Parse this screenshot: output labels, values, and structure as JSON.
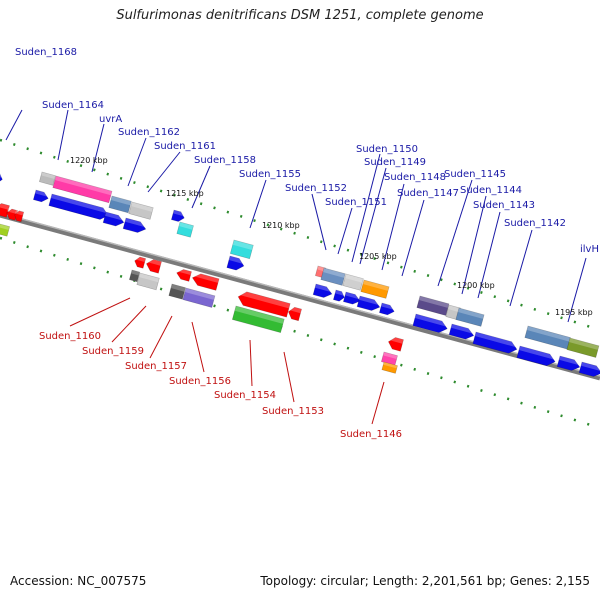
{
  "title": "Sulfurimonas denitrificans DSM 1251, complete genome",
  "accession": "Accession: NC_007575",
  "topology": "Topology: circular; Length: 2,201,561 bp; Genes: 2,155",
  "colors": {
    "label_top": "#1a1aa6",
    "label_bottom": "#c01010",
    "cds_forward": "#0a0ae6",
    "cds_reverse": "#ff0000",
    "tick": "#2e8b2e",
    "backbone": "#7a7a7a"
  },
  "kbp_markers": [
    "1220 kbp",
    "1215 kbp",
    "1210 kbp",
    "1205 kbp",
    "1200 kbp",
    "1195 kbp"
  ],
  "top_labels": [
    "Suden_1168",
    "Suden_1164",
    "uvrA",
    "Suden_1162",
    "Suden_1161",
    "Suden_1158",
    "Suden_1155",
    "Suden_1152",
    "Suden_1151",
    "Suden_1150",
    "Suden_1149",
    "Suden_1148",
    "Suden_1147",
    "Suden_1145",
    "Suden_1144",
    "Suden_1143",
    "Suden_1142",
    "ilvH"
  ],
  "bottom_labels": [
    "Suden_1160",
    "Suden_1159",
    "Suden_1157",
    "Suden_1156",
    "Suden_1154",
    "Suden_1153",
    "Suden_1146"
  ]
}
